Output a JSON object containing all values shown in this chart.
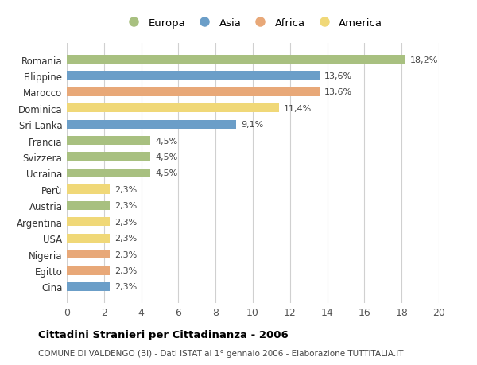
{
  "countries": [
    "Romania",
    "Filippine",
    "Marocco",
    "Dominica",
    "Sri Lanka",
    "Francia",
    "Svizzera",
    "Ucraina",
    "Perù",
    "Austria",
    "Argentina",
    "USA",
    "Nigeria",
    "Egitto",
    "Cina"
  ],
  "values": [
    18.2,
    13.6,
    13.6,
    11.4,
    9.1,
    4.5,
    4.5,
    4.5,
    2.3,
    2.3,
    2.3,
    2.3,
    2.3,
    2.3,
    2.3
  ],
  "labels": [
    "18,2%",
    "13,6%",
    "13,6%",
    "11,4%",
    "9,1%",
    "4,5%",
    "4,5%",
    "4,5%",
    "2,3%",
    "2,3%",
    "2,3%",
    "2,3%",
    "2,3%",
    "2,3%",
    "2,3%"
  ],
  "continents": [
    "Europa",
    "Asia",
    "Africa",
    "America",
    "Asia",
    "Europa",
    "Europa",
    "Europa",
    "America",
    "Europa",
    "America",
    "America",
    "Africa",
    "Africa",
    "Asia"
  ],
  "colors": {
    "Europa": "#a8c080",
    "Asia": "#6b9ec8",
    "Africa": "#e8a878",
    "America": "#f0d878"
  },
  "legend_order": [
    "Europa",
    "Asia",
    "Africa",
    "America"
  ],
  "title": "Cittadini Stranieri per Cittadinanza - 2006",
  "subtitle": "COMUNE DI VALDENGO (BI) - Dati ISTAT al 1° gennaio 2006 - Elaborazione TUTTITALIA.IT",
  "xlim": [
    0,
    20
  ],
  "xticks": [
    0,
    2,
    4,
    6,
    8,
    10,
    12,
    14,
    16,
    18,
    20
  ],
  "background_color": "#ffffff",
  "grid_color": "#d0d0d0"
}
